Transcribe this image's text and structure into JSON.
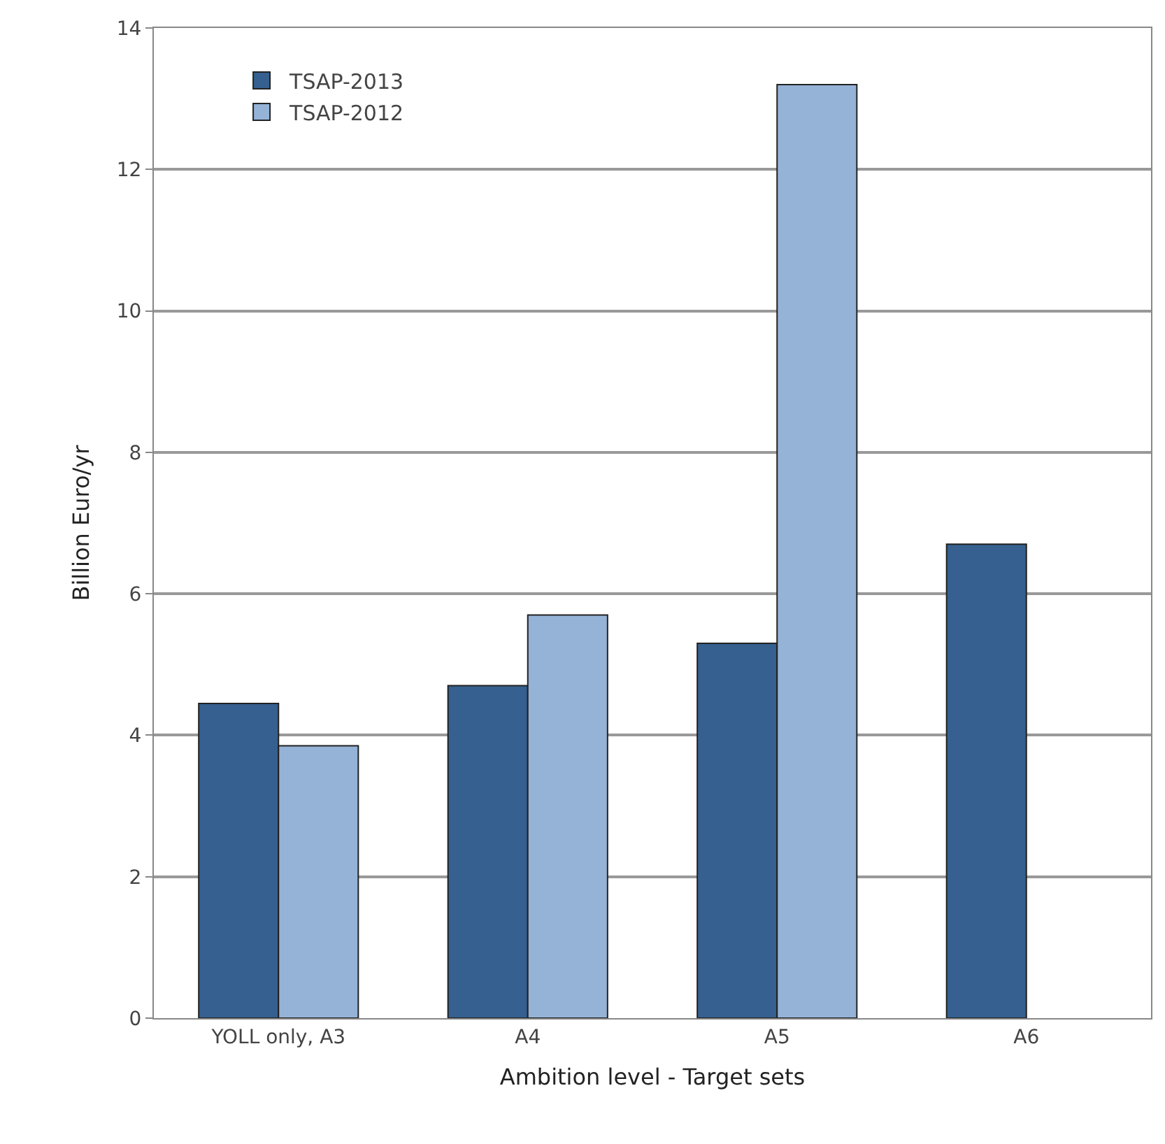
{
  "chart_data": {
    "type": "bar",
    "xlabel": "Ambition level - Target sets",
    "ylabel": "Billion Euro/yr",
    "categories": [
      "YOLL only, A3",
      "A4",
      "A5",
      "A6"
    ],
    "series": [
      {
        "name": "TSAP-2013",
        "color": "#35608f",
        "values": [
          4.45,
          4.7,
          5.3,
          6.7
        ]
      },
      {
        "name": "TSAP-2012",
        "color": "#95b3d7",
        "values": [
          3.85,
          5.7,
          13.2,
          null
        ]
      }
    ],
    "ylim": [
      0,
      14
    ],
    "yticks": [
      0,
      2,
      4,
      6,
      8,
      10,
      12,
      14
    ],
    "grid": "y",
    "legend": "top left"
  }
}
